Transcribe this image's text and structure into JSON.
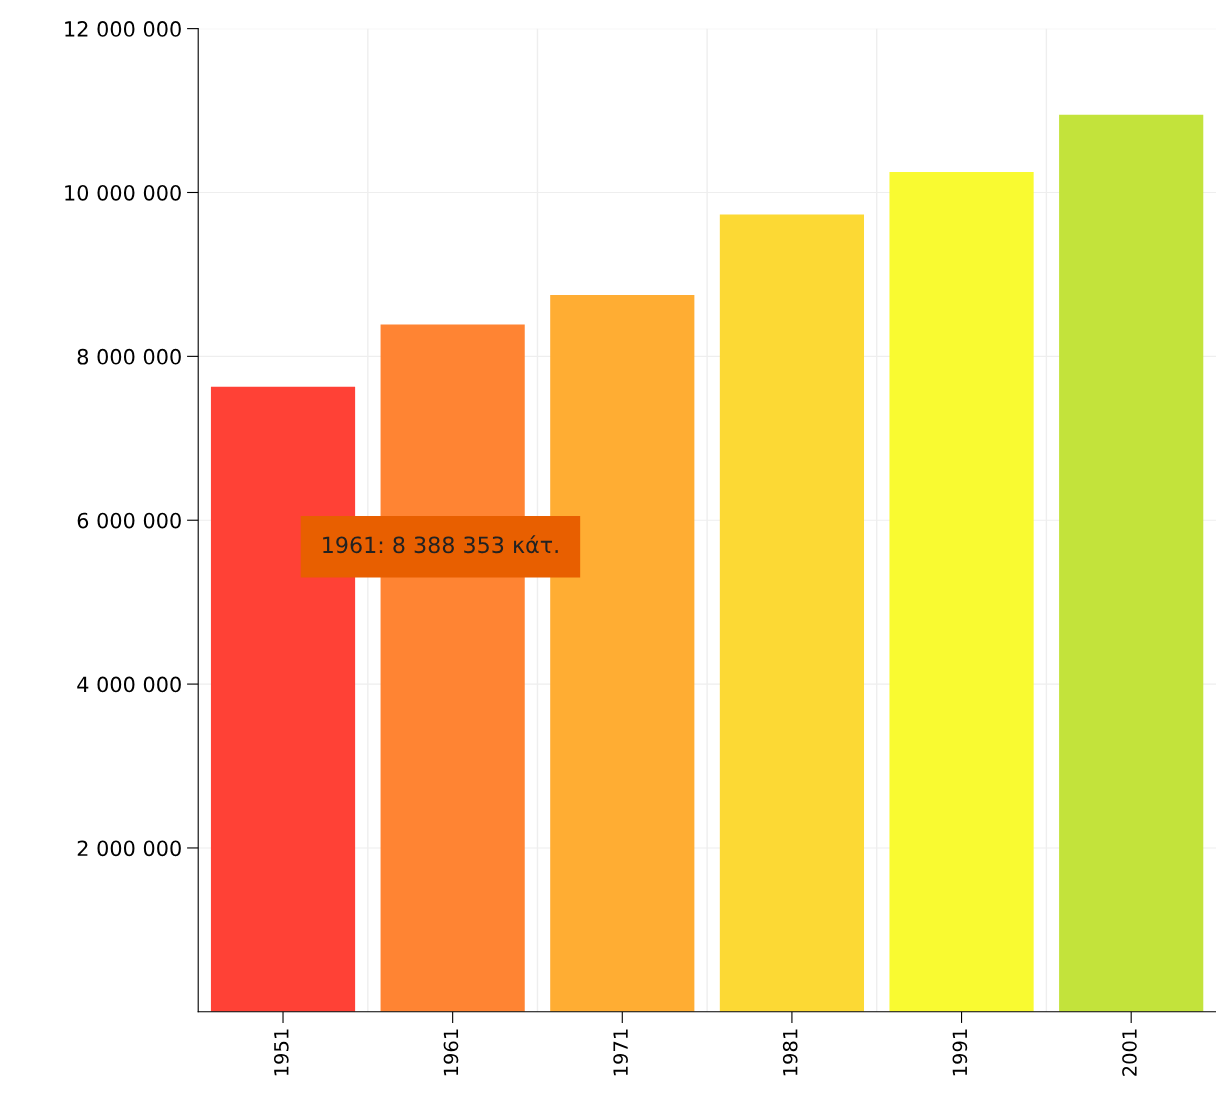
{
  "chart_data": {
    "type": "bar",
    "categories": [
      "1951",
      "1961",
      "1971",
      "1981",
      "1991",
      "2001"
    ],
    "values": [
      7630000,
      8388353,
      8750000,
      9730000,
      10250000,
      10950000
    ],
    "colors": [
      "#ff4136",
      "#ff8433",
      "#ffad33",
      "#fcd934",
      "#f9fa31",
      "#c3e33b"
    ],
    "ylim": [
      0,
      12000000
    ],
    "yticks": [
      {
        "value": 2000000,
        "label": "2 000 000"
      },
      {
        "value": 4000000,
        "label": "4 000 000"
      },
      {
        "value": 6000000,
        "label": "6 000 000"
      },
      {
        "value": 8000000,
        "label": "8 000 000"
      },
      {
        "value": 10000000,
        "label": "10 000 000"
      },
      {
        "value": 12000000,
        "label": "12 000 000"
      }
    ],
    "grid": true,
    "annotations": [
      "1961: 8 388 353 κάτ."
    ]
  }
}
